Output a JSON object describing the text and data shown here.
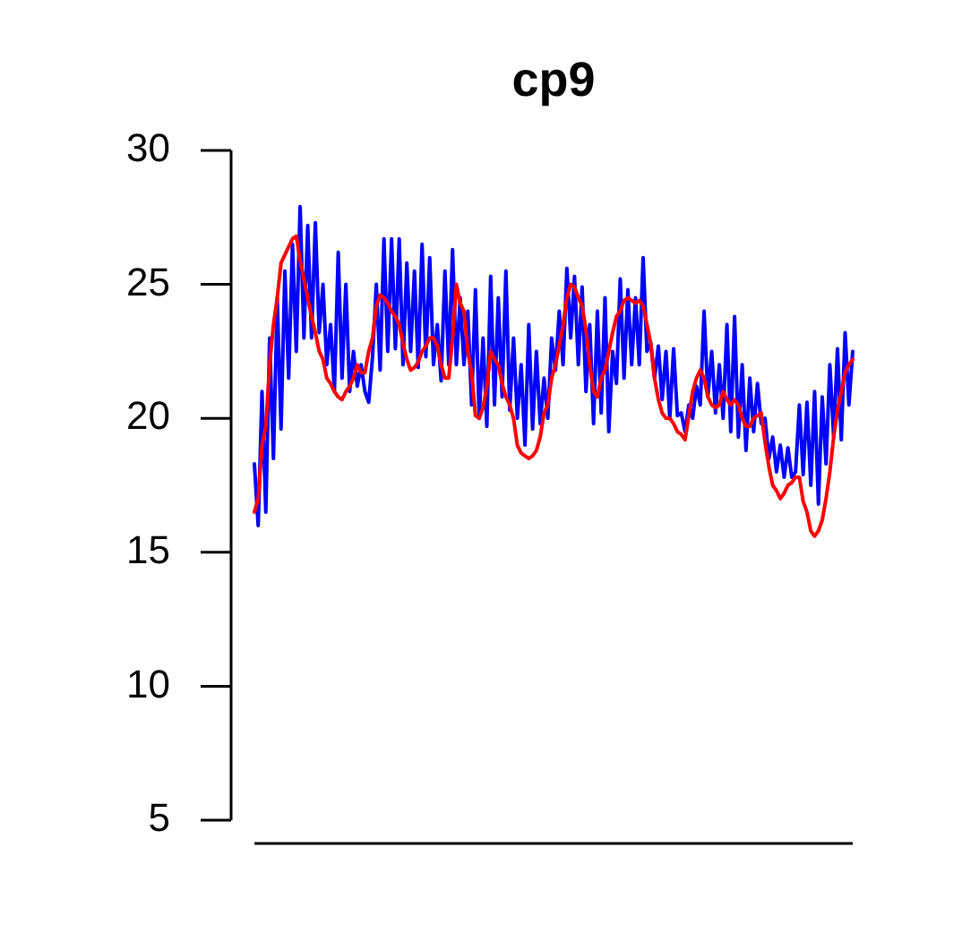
{
  "chart_data": {
    "type": "line",
    "title": "cp9",
    "categories": [
      null,
      null,
      null,
      null,
      null,
      null,
      null,
      null,
      null,
      null,
      null,
      null,
      null,
      null,
      null,
      null,
      null,
      null,
      null,
      null,
      null,
      null,
      null,
      null,
      null,
      null,
      null,
      null,
      null,
      null,
      null,
      null,
      null,
      null,
      null,
      null,
      null,
      null,
      null,
      null,
      null,
      null,
      null,
      null,
      null,
      null,
      null,
      null,
      null,
      null,
      null,
      null,
      null,
      null,
      null,
      null,
      null,
      null,
      null,
      null,
      null,
      null,
      null,
      null,
      null,
      null,
      null,
      null,
      null,
      null,
      null,
      null,
      null,
      null,
      null,
      null,
      null,
      null,
      null,
      null,
      null,
      null,
      null,
      null,
      null,
      null,
      null,
      null,
      null,
      null,
      null,
      null,
      null,
      null,
      null,
      null,
      null,
      null,
      null,
      null,
      null,
      null,
      null,
      null,
      null,
      null,
      null,
      null,
      null,
      null,
      null,
      null,
      null,
      null,
      null,
      null,
      null,
      null,
      null,
      null,
      null,
      null,
      null,
      null,
      null,
      null,
      null,
      null,
      null,
      null,
      null,
      null,
      null,
      null,
      null,
      null,
      null,
      null,
      null,
      null,
      null,
      null,
      null,
      null,
      null,
      null,
      null,
      null,
      null,
      null,
      null,
      null,
      null,
      null,
      null,
      null,
      null,
      null
    ],
    "ylim": [
      5,
      30
    ],
    "yticks": [
      5,
      10,
      15,
      20,
      25,
      30
    ],
    "tick_labels": "y",
    "marker": "none",
    "line_style": "solid",
    "series": [
      {
        "color": "#0000ff",
        "values": [
          18.3,
          16.0,
          21.0,
          16.5,
          23.0,
          18.5,
          24.5,
          19.6,
          25.5,
          21.5,
          26.5,
          22.5,
          27.9,
          23.0,
          27.2,
          23.0,
          27.3,
          23.2,
          25.0,
          22.0,
          23.5,
          21.0,
          26.2,
          21.5,
          25.0,
          21.0,
          22.5,
          21.2,
          22.0,
          21.0,
          20.6,
          22.3,
          25.0,
          21.8,
          26.7,
          22.5,
          26.7,
          22.6,
          26.7,
          22.0,
          25.8,
          22.5,
          25.5,
          21.9,
          26.5,
          22.3,
          26.0,
          22.0,
          23.5,
          21.4,
          25.5,
          22.0,
          26.3,
          22.0,
          24.5,
          22.0,
          24.0,
          20.5,
          24.8,
          20.0,
          23.0,
          19.7,
          25.3,
          20.5,
          24.5,
          20.8,
          25.5,
          20.3,
          23.0,
          20.0,
          22.0,
          19.0,
          23.5,
          19.6,
          22.5,
          19.8,
          21.5,
          20.0,
          23.0,
          21.8,
          24.0,
          22.0,
          25.6,
          23.0,
          25.3,
          22.0,
          24.9,
          21.0,
          23.5,
          19.8,
          24.0,
          20.2,
          24.5,
          19.5,
          22.5,
          21.3,
          25.2,
          21.5,
          24.8,
          22.0,
          24.5,
          22.0,
          26.0,
          22.5,
          22.8,
          21.5,
          22.7,
          20.7,
          22.5,
          20.0,
          22.6,
          20.1,
          20.2,
          19.5,
          20.5,
          20.0,
          21.2,
          20.5,
          24.0,
          20.8,
          22.5,
          20.2,
          22.0,
          20.0,
          23.5,
          19.5,
          23.8,
          19.3,
          22.0,
          18.8,
          21.5,
          19.5,
          21.3,
          19.8,
          20.0,
          18.5,
          19.3,
          18.0,
          19.0,
          17.8,
          18.9,
          17.8,
          18.0,
          20.5,
          17.9,
          20.6,
          17.5,
          21.0,
          16.8,
          20.8,
          18.3,
          22.0,
          19.3,
          22.6,
          19.2,
          23.2,
          20.5,
          22.5
        ]
      },
      {
        "color": "#ff0000",
        "values": [
          16.5,
          17.0,
          19.0,
          19.7,
          22.0,
          23.5,
          24.5,
          25.8,
          26.1,
          26.4,
          26.7,
          26.8,
          25.9,
          25.2,
          24.5,
          23.8,
          23.2,
          22.5,
          22.2,
          21.5,
          21.3,
          21.0,
          20.8,
          20.7,
          21.0,
          21.2,
          21.5,
          22.0,
          21.7,
          21.7,
          22.5,
          23.0,
          24.2,
          24.6,
          24.5,
          24.3,
          24.0,
          23.8,
          23.5,
          22.8,
          22.2,
          21.8,
          21.9,
          22.1,
          22.5,
          22.7,
          23.0,
          23.0,
          22.7,
          22.0,
          21.5,
          21.5,
          23.0,
          25.0,
          24.3,
          24.0,
          22.5,
          21.7,
          20.1,
          20.0,
          20.4,
          21.2,
          22.5,
          22.2,
          22.0,
          21.3,
          20.8,
          20.5,
          20.0,
          19.0,
          18.7,
          18.6,
          18.5,
          18.6,
          18.8,
          19.3,
          20.2,
          20.5,
          21.5,
          22.0,
          22.7,
          23.5,
          24.5,
          25.0,
          24.9,
          24.5,
          24.2,
          23.3,
          22.0,
          21.0,
          20.8,
          21.5,
          21.8,
          22.5,
          23.2,
          23.8,
          24.0,
          24.4,
          24.5,
          24.4,
          24.3,
          24.4,
          24.2,
          23.5,
          22.8,
          21.5,
          20.7,
          20.2,
          20.0,
          20.0,
          19.8,
          19.5,
          19.4,
          19.2,
          20.1,
          21.0,
          21.5,
          21.8,
          21.5,
          20.8,
          20.5,
          20.4,
          20.5,
          21.0,
          20.7,
          20.5,
          20.7,
          20.5,
          20.0,
          19.7,
          19.7,
          20.0,
          20.1,
          20.2,
          19.1,
          18.2,
          17.5,
          17.3,
          17.0,
          17.2,
          17.5,
          17.6,
          17.8,
          17.8,
          16.9,
          16.5,
          15.8,
          15.6,
          15.8,
          16.2,
          17.0,
          18.0,
          19.3,
          20.3,
          21.0,
          21.7,
          22.0,
          22.2
        ]
      }
    ]
  }
}
